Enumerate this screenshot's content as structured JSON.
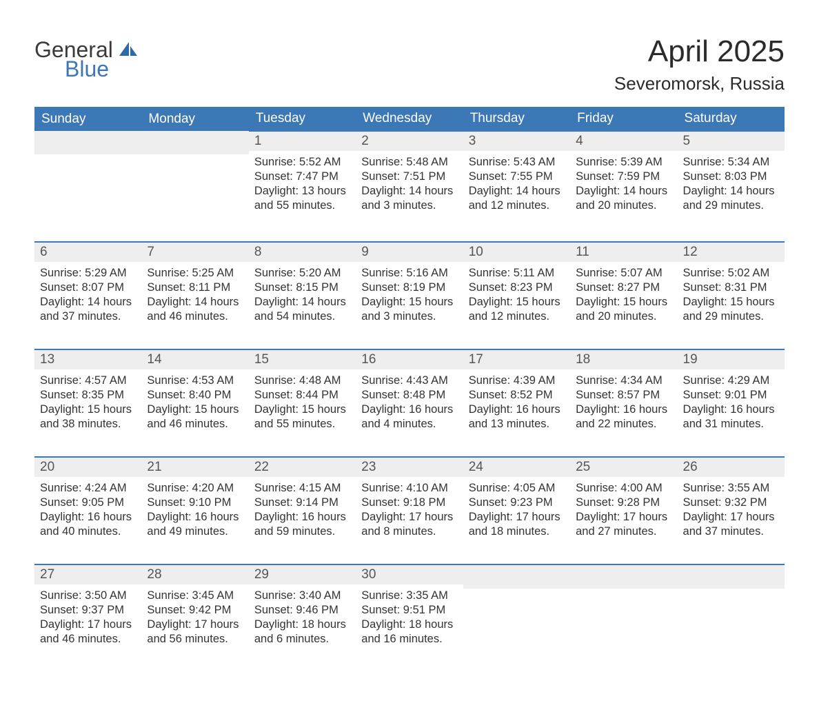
{
  "logo": {
    "word1": "General",
    "word2": "Blue"
  },
  "title": {
    "month": "April 2025",
    "location": "Severomorsk, Russia"
  },
  "theme": {
    "header_bg": "#3b78b5",
    "header_fg": "#ffffff",
    "daynum_bg": "#eeeeee",
    "row_divider": "#3b78b5",
    "text_color": "#333333",
    "page_bg": "#ffffff"
  },
  "weekdays": [
    "Sunday",
    "Monday",
    "Tuesday",
    "Wednesday",
    "Thursday",
    "Friday",
    "Saturday"
  ],
  "weeks": [
    [
      null,
      null,
      {
        "n": "1",
        "sr": "Sunrise: 5:52 AM",
        "ss": "Sunset: 7:47 PM",
        "d1": "Daylight: 13 hours",
        "d2": "and 55 minutes."
      },
      {
        "n": "2",
        "sr": "Sunrise: 5:48 AM",
        "ss": "Sunset: 7:51 PM",
        "d1": "Daylight: 14 hours",
        "d2": "and 3 minutes."
      },
      {
        "n": "3",
        "sr": "Sunrise: 5:43 AM",
        "ss": "Sunset: 7:55 PM",
        "d1": "Daylight: 14 hours",
        "d2": "and 12 minutes."
      },
      {
        "n": "4",
        "sr": "Sunrise: 5:39 AM",
        "ss": "Sunset: 7:59 PM",
        "d1": "Daylight: 14 hours",
        "d2": "and 20 minutes."
      },
      {
        "n": "5",
        "sr": "Sunrise: 5:34 AM",
        "ss": "Sunset: 8:03 PM",
        "d1": "Daylight: 14 hours",
        "d2": "and 29 minutes."
      }
    ],
    [
      {
        "n": "6",
        "sr": "Sunrise: 5:29 AM",
        "ss": "Sunset: 8:07 PM",
        "d1": "Daylight: 14 hours",
        "d2": "and 37 minutes."
      },
      {
        "n": "7",
        "sr": "Sunrise: 5:25 AM",
        "ss": "Sunset: 8:11 PM",
        "d1": "Daylight: 14 hours",
        "d2": "and 46 minutes."
      },
      {
        "n": "8",
        "sr": "Sunrise: 5:20 AM",
        "ss": "Sunset: 8:15 PM",
        "d1": "Daylight: 14 hours",
        "d2": "and 54 minutes."
      },
      {
        "n": "9",
        "sr": "Sunrise: 5:16 AM",
        "ss": "Sunset: 8:19 PM",
        "d1": "Daylight: 15 hours",
        "d2": "and 3 minutes."
      },
      {
        "n": "10",
        "sr": "Sunrise: 5:11 AM",
        "ss": "Sunset: 8:23 PM",
        "d1": "Daylight: 15 hours",
        "d2": "and 12 minutes."
      },
      {
        "n": "11",
        "sr": "Sunrise: 5:07 AM",
        "ss": "Sunset: 8:27 PM",
        "d1": "Daylight: 15 hours",
        "d2": "and 20 minutes."
      },
      {
        "n": "12",
        "sr": "Sunrise: 5:02 AM",
        "ss": "Sunset: 8:31 PM",
        "d1": "Daylight: 15 hours",
        "d2": "and 29 minutes."
      }
    ],
    [
      {
        "n": "13",
        "sr": "Sunrise: 4:57 AM",
        "ss": "Sunset: 8:35 PM",
        "d1": "Daylight: 15 hours",
        "d2": "and 38 minutes."
      },
      {
        "n": "14",
        "sr": "Sunrise: 4:53 AM",
        "ss": "Sunset: 8:40 PM",
        "d1": "Daylight: 15 hours",
        "d2": "and 46 minutes."
      },
      {
        "n": "15",
        "sr": "Sunrise: 4:48 AM",
        "ss": "Sunset: 8:44 PM",
        "d1": "Daylight: 15 hours",
        "d2": "and 55 minutes."
      },
      {
        "n": "16",
        "sr": "Sunrise: 4:43 AM",
        "ss": "Sunset: 8:48 PM",
        "d1": "Daylight: 16 hours",
        "d2": "and 4 minutes."
      },
      {
        "n": "17",
        "sr": "Sunrise: 4:39 AM",
        "ss": "Sunset: 8:52 PM",
        "d1": "Daylight: 16 hours",
        "d2": "and 13 minutes."
      },
      {
        "n": "18",
        "sr": "Sunrise: 4:34 AM",
        "ss": "Sunset: 8:57 PM",
        "d1": "Daylight: 16 hours",
        "d2": "and 22 minutes."
      },
      {
        "n": "19",
        "sr": "Sunrise: 4:29 AM",
        "ss": "Sunset: 9:01 PM",
        "d1": "Daylight: 16 hours",
        "d2": "and 31 minutes."
      }
    ],
    [
      {
        "n": "20",
        "sr": "Sunrise: 4:24 AM",
        "ss": "Sunset: 9:05 PM",
        "d1": "Daylight: 16 hours",
        "d2": "and 40 minutes."
      },
      {
        "n": "21",
        "sr": "Sunrise: 4:20 AM",
        "ss": "Sunset: 9:10 PM",
        "d1": "Daylight: 16 hours",
        "d2": "and 49 minutes."
      },
      {
        "n": "22",
        "sr": "Sunrise: 4:15 AM",
        "ss": "Sunset: 9:14 PM",
        "d1": "Daylight: 16 hours",
        "d2": "and 59 minutes."
      },
      {
        "n": "23",
        "sr": "Sunrise: 4:10 AM",
        "ss": "Sunset: 9:18 PM",
        "d1": "Daylight: 17 hours",
        "d2": "and 8 minutes."
      },
      {
        "n": "24",
        "sr": "Sunrise: 4:05 AM",
        "ss": "Sunset: 9:23 PM",
        "d1": "Daylight: 17 hours",
        "d2": "and 18 minutes."
      },
      {
        "n": "25",
        "sr": "Sunrise: 4:00 AM",
        "ss": "Sunset: 9:28 PM",
        "d1": "Daylight: 17 hours",
        "d2": "and 27 minutes."
      },
      {
        "n": "26",
        "sr": "Sunrise: 3:55 AM",
        "ss": "Sunset: 9:32 PM",
        "d1": "Daylight: 17 hours",
        "d2": "and 37 minutes."
      }
    ],
    [
      {
        "n": "27",
        "sr": "Sunrise: 3:50 AM",
        "ss": "Sunset: 9:37 PM",
        "d1": "Daylight: 17 hours",
        "d2": "and 46 minutes."
      },
      {
        "n": "28",
        "sr": "Sunrise: 3:45 AM",
        "ss": "Sunset: 9:42 PM",
        "d1": "Daylight: 17 hours",
        "d2": "and 56 minutes."
      },
      {
        "n": "29",
        "sr": "Sunrise: 3:40 AM",
        "ss": "Sunset: 9:46 PM",
        "d1": "Daylight: 18 hours",
        "d2": "and 6 minutes."
      },
      {
        "n": "30",
        "sr": "Sunrise: 3:35 AM",
        "ss": "Sunset: 9:51 PM",
        "d1": "Daylight: 18 hours",
        "d2": "and 16 minutes."
      },
      null,
      null,
      null
    ]
  ]
}
